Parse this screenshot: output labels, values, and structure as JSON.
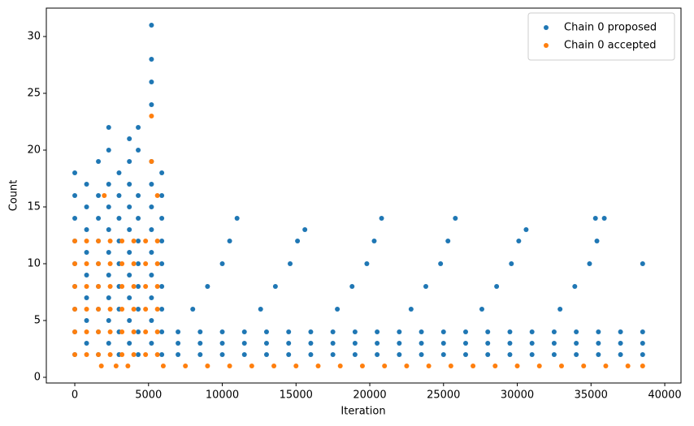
{
  "chart_data": {
    "type": "scatter",
    "xlabel": "Iteration",
    "ylabel": "Count",
    "xlim": [
      -1930,
      41100
    ],
    "ylim": [
      -0.5,
      32.5
    ],
    "xticks": [
      0,
      5000,
      10000,
      15000,
      20000,
      25000,
      30000,
      35000,
      40000
    ],
    "yticks": [
      0,
      5,
      10,
      15,
      20,
      25,
      30
    ],
    "legend": "upper right",
    "series": [
      {
        "name": "Chain 0 proposed",
        "color": "#1f77b4",
        "x": [
          0,
          0,
          0,
          0,
          0,
          0,
          0,
          0,
          0,
          800,
          800,
          800,
          800,
          800,
          800,
          800,
          800,
          1600,
          1600,
          1600,
          1600,
          1600,
          1600,
          1600,
          1600,
          1600,
          2300,
          2300,
          2300,
          2300,
          2300,
          2300,
          2300,
          2300,
          2300,
          2300,
          3000,
          3000,
          3000,
          3000,
          3000,
          3000,
          3000,
          3000,
          3000,
          3700,
          3700,
          3700,
          3700,
          3700,
          3700,
          3700,
          3700,
          3700,
          3700,
          4300,
          4300,
          4300,
          4300,
          4300,
          4300,
          4300,
          4300,
          4300,
          4300,
          5200,
          5200,
          5200,
          5200,
          5200,
          5200,
          5200,
          5200,
          5200,
          5200,
          5200,
          5200,
          5200,
          5900,
          5900,
          5900,
          5900,
          5900,
          5900,
          5900,
          5900,
          5900,
          7000,
          7000,
          7000,
          8500,
          8500,
          8500,
          10000,
          10000,
          10000,
          11500,
          11500,
          11500,
          13000,
          13000,
          13000,
          14500,
          14500,
          14500,
          16000,
          16000,
          16000,
          17500,
          17500,
          17500,
          19000,
          19000,
          19000,
          20500,
          20500,
          20500,
          22000,
          22000,
          22000,
          23500,
          23500,
          23500,
          25000,
          25000,
          25000,
          26500,
          26500,
          26500,
          28000,
          28000,
          28000,
          29500,
          29500,
          29500,
          31000,
          31000,
          31000,
          32500,
          32500,
          32500,
          34000,
          34000,
          34000,
          35500,
          35500,
          35500,
          37000,
          37000,
          37000,
          38500,
          38500,
          38500,
          8000,
          9000,
          10000,
          10500,
          11000,
          12600,
          13600,
          14600,
          15100,
          15600,
          17800,
          18800,
          19800,
          20300,
          20800,
          22800,
          23800,
          24800,
          25300,
          25800,
          27600,
          28600,
          29600,
          30100,
          30600,
          32900,
          33900,
          34900,
          35400,
          35900,
          35300,
          38500
        ],
        "values": [
          2,
          4,
          6,
          8,
          10,
          12,
          14,
          16,
          18,
          3,
          5,
          7,
          9,
          11,
          13,
          15,
          17,
          2,
          4,
          6,
          8,
          10,
          12,
          14,
          16,
          19,
          3,
          5,
          7,
          9,
          11,
          13,
          15,
          17,
          20,
          22,
          2,
          4,
          6,
          8,
          10,
          12,
          14,
          16,
          18,
          3,
          5,
          7,
          9,
          11,
          13,
          15,
          17,
          19,
          21,
          2,
          4,
          6,
          8,
          10,
          12,
          14,
          16,
          20,
          22,
          3,
          5,
          7,
          9,
          11,
          13,
          15,
          17,
          19,
          24,
          26,
          28,
          31,
          2,
          4,
          6,
          8,
          10,
          12,
          14,
          16,
          18,
          2,
          3,
          4,
          2,
          3,
          4,
          2,
          3,
          4,
          2,
          3,
          4,
          2,
          3,
          4,
          2,
          3,
          4,
          2,
          3,
          4,
          2,
          3,
          4,
          2,
          3,
          4,
          2,
          3,
          4,
          2,
          3,
          4,
          2,
          3,
          4,
          2,
          3,
          4,
          2,
          3,
          4,
          2,
          3,
          4,
          2,
          3,
          4,
          2,
          3,
          4,
          2,
          3,
          4,
          2,
          3,
          4,
          2,
          3,
          4,
          2,
          3,
          4,
          2,
          3,
          4,
          6,
          8,
          10,
          12,
          14,
          6,
          8,
          10,
          12,
          13,
          6,
          8,
          10,
          12,
          14,
          6,
          8,
          10,
          12,
          14,
          6,
          8,
          10,
          12,
          13,
          6,
          8,
          10,
          12,
          14,
          14,
          10
        ]
      },
      {
        "name": "Chain 0 accepted",
        "color": "#ff7f0e",
        "x": [
          0,
          0,
          0,
          0,
          0,
          0,
          800,
          800,
          800,
          800,
          800,
          800,
          1600,
          1600,
          1600,
          1600,
          1600,
          1600,
          2400,
          2400,
          2400,
          2400,
          2400,
          2400,
          3200,
          3200,
          3200,
          3200,
          3200,
          3200,
          4000,
          4000,
          4000,
          4000,
          4000,
          4000,
          4800,
          4800,
          4800,
          4800,
          4800,
          4800,
          5600,
          5600,
          5600,
          5600,
          5600,
          5600,
          5200,
          5200,
          5600,
          2000,
          1800,
          2800,
          3600,
          6000,
          7500,
          9000,
          10500,
          12000,
          13500,
          15000,
          16500,
          18000,
          19500,
          21000,
          22500,
          24000,
          25500,
          27000,
          28500,
          30000,
          31500,
          33000,
          34500,
          36000,
          37500,
          38500
        ],
        "values": [
          2,
          4,
          6,
          8,
          10,
          12,
          2,
          4,
          6,
          8,
          10,
          12,
          2,
          4,
          6,
          8,
          10,
          12,
          2,
          4,
          6,
          8,
          10,
          12,
          2,
          4,
          6,
          8,
          10,
          12,
          2,
          4,
          6,
          8,
          10,
          12,
          2,
          4,
          6,
          8,
          10,
          12,
          2,
          4,
          6,
          8,
          10,
          12,
          23,
          19,
          16,
          16,
          1,
          1,
          1,
          1,
          1,
          1,
          1,
          1,
          1,
          1,
          1,
          1,
          1,
          1,
          1,
          1,
          1,
          1,
          1,
          1,
          1,
          1,
          1,
          1,
          1,
          1
        ]
      }
    ]
  }
}
